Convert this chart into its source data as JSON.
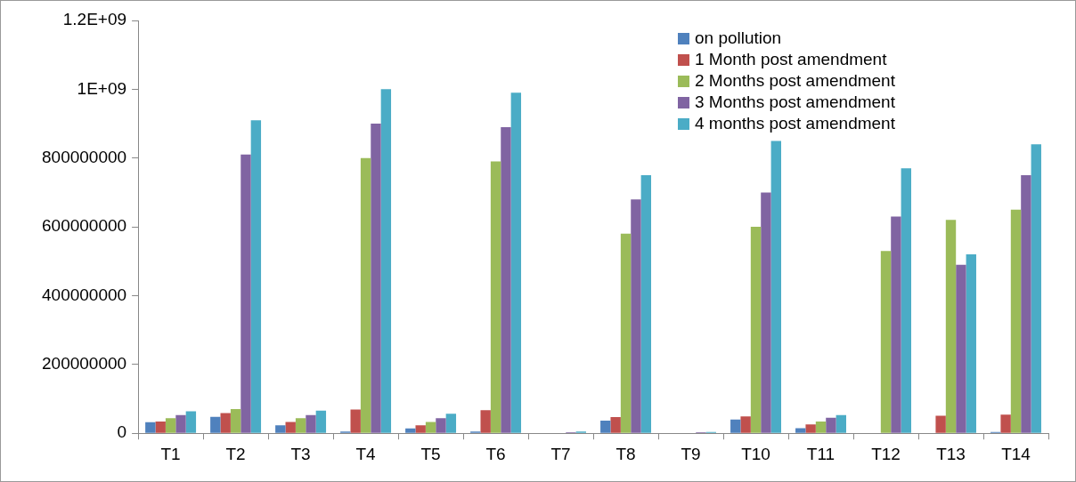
{
  "chart_data": {
    "type": "bar",
    "categories": [
      "T1",
      "T2",
      "T3",
      "T4",
      "T5",
      "T6",
      "T7",
      "T8",
      "T9",
      "T10",
      "T11",
      "T12",
      "T13",
      "T14"
    ],
    "series": [
      {
        "name": "on pollution",
        "color": "#4f81bd",
        "values": [
          32000000,
          48000000,
          23000000,
          5000000,
          14000000,
          5000000,
          1000000,
          37000000,
          1000000,
          40000000,
          15000000,
          1000000,
          1000000,
          4000000
        ]
      },
      {
        "name": "1 Month post amendment",
        "color": "#c0504d",
        "values": [
          34000000,
          59000000,
          33000000,
          69000000,
          23000000,
          67000000,
          1000000,
          47000000,
          null,
          49000000,
          26000000,
          null,
          51000000,
          54000000
        ]
      },
      {
        "name": "2 Months post amendment",
        "color": "#9bbb59",
        "values": [
          44000000,
          70000000,
          44000000,
          800000000,
          33000000,
          790000000,
          null,
          580000000,
          null,
          600000000,
          34000000,
          530000000,
          620000000,
          650000000
        ]
      },
      {
        "name": "3 Months post amendment",
        "color": "#8064a2",
        "values": [
          53000000,
          810000000,
          53000000,
          900000000,
          44000000,
          890000000,
          3000000,
          680000000,
          3000000,
          700000000,
          45000000,
          630000000,
          490000000,
          750000000
        ]
      },
      {
        "name": "4 months post amendment",
        "color": "#4bacc6",
        "values": [
          64000000,
          910000000,
          66000000,
          1000000000,
          57000000,
          990000000,
          5000000,
          750000000,
          4000000,
          850000000,
          53000000,
          770000000,
          520000000,
          840000000
        ]
      }
    ],
    "ylim": [
      0,
      1200000000
    ],
    "yticks": [
      0,
      200000000,
      400000000,
      600000000,
      800000000,
      {
        "value": 1000000000,
        "label": "1E+09"
      },
      {
        "value": 1200000000,
        "label": "1.2E+09"
      }
    ],
    "grid": false,
    "legend": "top right"
  }
}
